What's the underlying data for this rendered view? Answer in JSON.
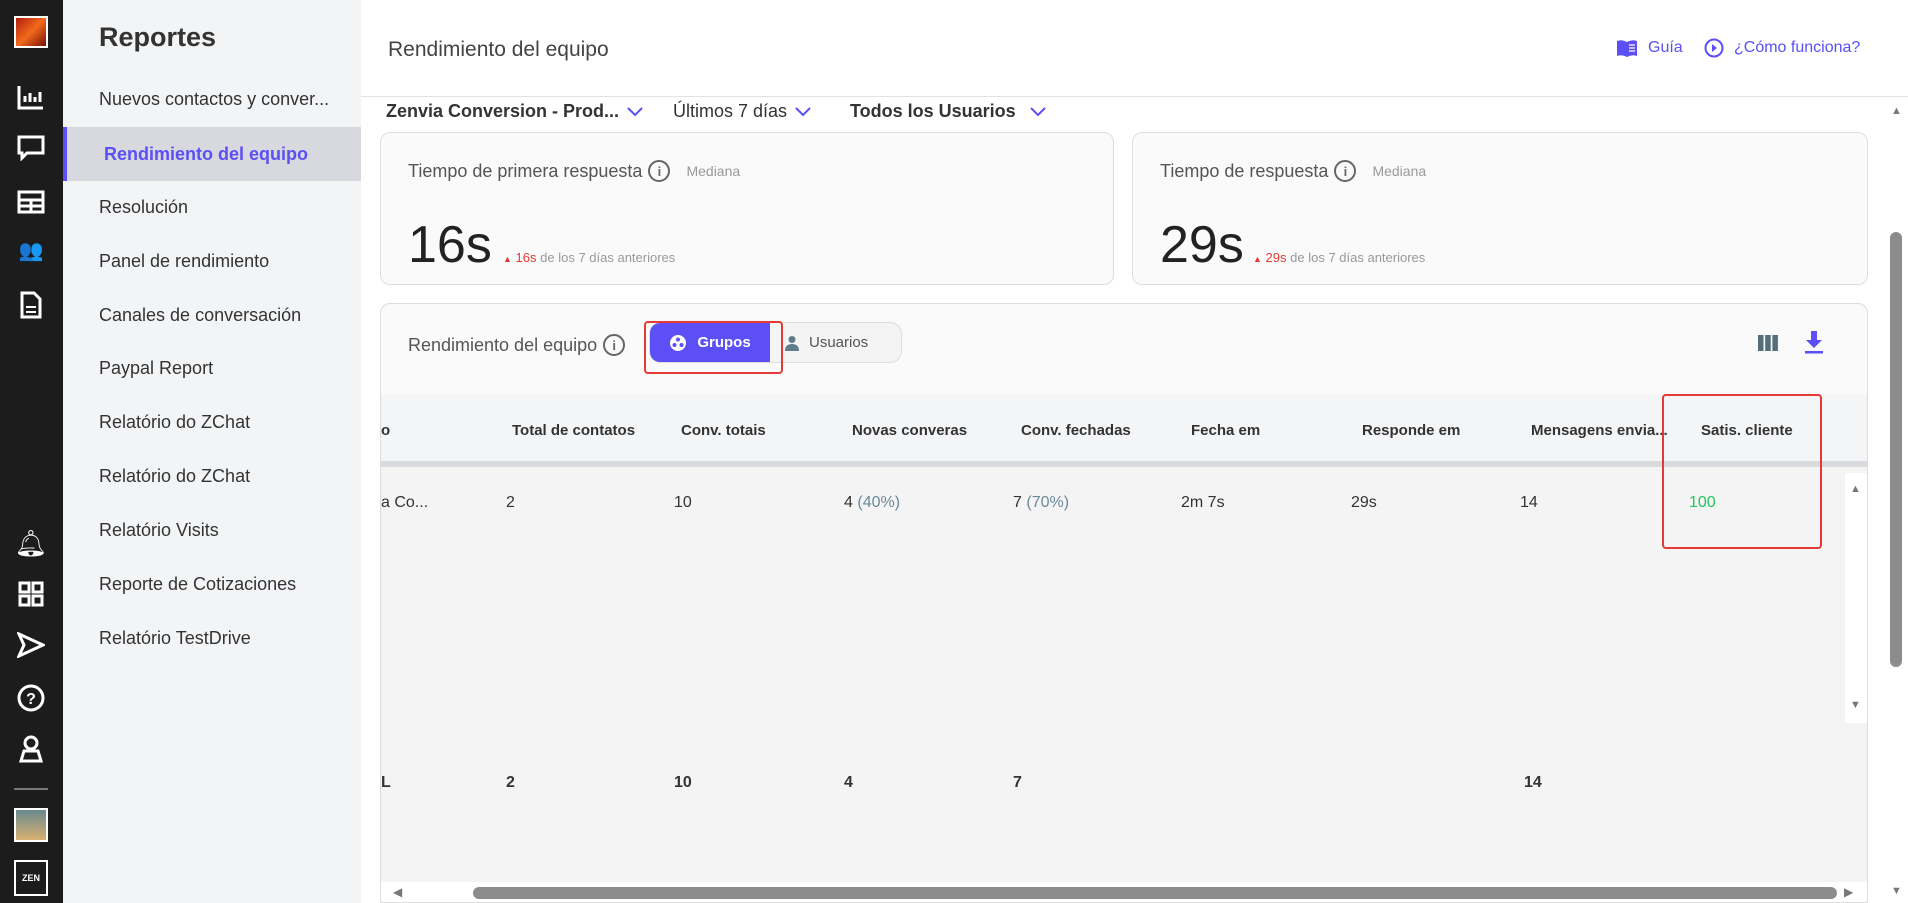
{
  "rail": {
    "icons": [
      "brand-logo",
      "bar-chart-icon",
      "chat-icon",
      "table-icon",
      "users-icon",
      "document-icon",
      "bell-icon",
      "apps-grid-icon",
      "send-icon",
      "help-icon",
      "user-icon",
      "avatar",
      "zenvia-logo"
    ]
  },
  "sidebar": {
    "title": "Reportes",
    "items": [
      {
        "label": "Nuevos contactos y conver..."
      },
      {
        "label": "Rendimiento del equipo",
        "active": true
      },
      {
        "label": "Resolución"
      },
      {
        "label": "Panel de rendimiento"
      },
      {
        "label": "Canales de conversación"
      },
      {
        "label": "Paypal Report"
      },
      {
        "label": "Relatório do ZChat"
      },
      {
        "label": "Relatório do ZChat"
      },
      {
        "label": "Relatório Visits"
      },
      {
        "label": "Reporte de Cotizaciones"
      },
      {
        "label": "Relatório TestDrive"
      }
    ]
  },
  "header": {
    "title": "Rendimiento del equipo",
    "guide": "Guía",
    "how": "¿Cómo funciona?"
  },
  "filters": {
    "account": "Zenvia Conversion - Prod...",
    "period": "Últimos 7 días",
    "users": "Todos los Usuarios"
  },
  "cards": [
    {
      "title": "Tiempo de primera respuesta",
      "sub": "Mediana",
      "value": "16s",
      "delta": "16s",
      "delta_text": "de los 7 días anteriores"
    },
    {
      "title": "Tiempo de respuesta",
      "sub": "Mediana",
      "value": "29s",
      "delta": "29s",
      "delta_text": "de los 7 días anteriores"
    }
  ],
  "panel": {
    "title": "Rendimiento del equipo",
    "toggle": {
      "groups": "Grupos",
      "users": "Usuarios",
      "selected": "Grupos"
    }
  },
  "table": {
    "headers": [
      "o",
      "Total de contatos",
      "Conv. totais",
      "Novas converas",
      "Conv. fechadas",
      "Fecha em",
      "Responde em",
      "Mensagens envia...",
      "Satis. cliente"
    ],
    "rows": [
      {
        "cells": [
          "a Co...",
          "2",
          "10",
          "4",
          "7",
          "2m 7s",
          "29s",
          "14",
          "100"
        ],
        "pcts": {
          "3": "(40%)",
          "4": "(70%)"
        }
      }
    ],
    "footer": [
      "L",
      "2",
      "10",
      "4",
      "7",
      "",
      "",
      "14",
      ""
    ]
  },
  "colors": {
    "accent": "#5b4ff5",
    "negative": "#e53935",
    "satisfaction": "#22c55e",
    "highlight": "#e53935"
  }
}
